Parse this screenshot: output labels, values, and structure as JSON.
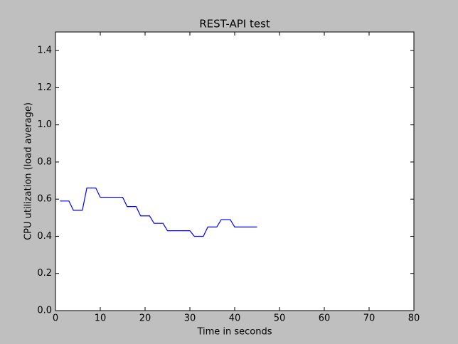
{
  "chart_data": {
    "type": "line",
    "title": "REST-API test",
    "x_label": "Time in seconds",
    "y_label": "CPU utilization (load average)",
    "x": [
      1,
      2,
      3,
      4,
      5,
      6,
      7,
      8,
      9,
      10,
      11,
      12,
      13,
      14,
      15,
      16,
      17,
      18,
      19,
      20,
      21,
      22,
      23,
      24,
      25,
      26,
      27,
      28,
      29,
      30,
      31,
      32,
      33,
      34,
      35,
      36,
      37,
      38,
      39,
      40,
      41,
      42,
      43,
      44,
      45
    ],
    "series": [
      {
        "name": "CPU",
        "color": "#0000ff",
        "values": [
          0.59,
          0.59,
          0.59,
          0.54,
          0.54,
          0.54,
          0.66,
          0.66,
          0.66,
          0.61,
          0.61,
          0.61,
          0.61,
          0.61,
          0.61,
          0.56,
          0.56,
          0.56,
          0.51,
          0.51,
          0.51,
          0.47,
          0.47,
          0.47,
          0.43,
          0.43,
          0.43,
          0.43,
          0.43,
          0.43,
          0.4,
          0.4,
          0.4,
          0.45,
          0.45,
          0.45,
          0.49,
          0.49,
          0.49,
          0.45,
          0.45,
          0.45,
          0.45,
          0.45,
          0.45
        ]
      }
    ],
    "xlim": [
      0,
      80
    ],
    "xticks": [
      0,
      10,
      20,
      30,
      40,
      50,
      60,
      70,
      80
    ],
    "ylim": [
      0,
      1.5
    ],
    "yticks": [
      {
        "value": 0,
        "label": "0.0"
      },
      {
        "value": 0.2,
        "label": "0.2"
      },
      {
        "value": 0.4,
        "label": "0.4"
      },
      {
        "value": 0.6,
        "label": "0.6"
      },
      {
        "value": 0.8,
        "label": "0.8"
      },
      {
        "value": 1.0,
        "label": "1.0"
      },
      {
        "value": 1.2,
        "label": "1.2"
      },
      {
        "value": 1.4,
        "label": "1.4"
      }
    ]
  }
}
